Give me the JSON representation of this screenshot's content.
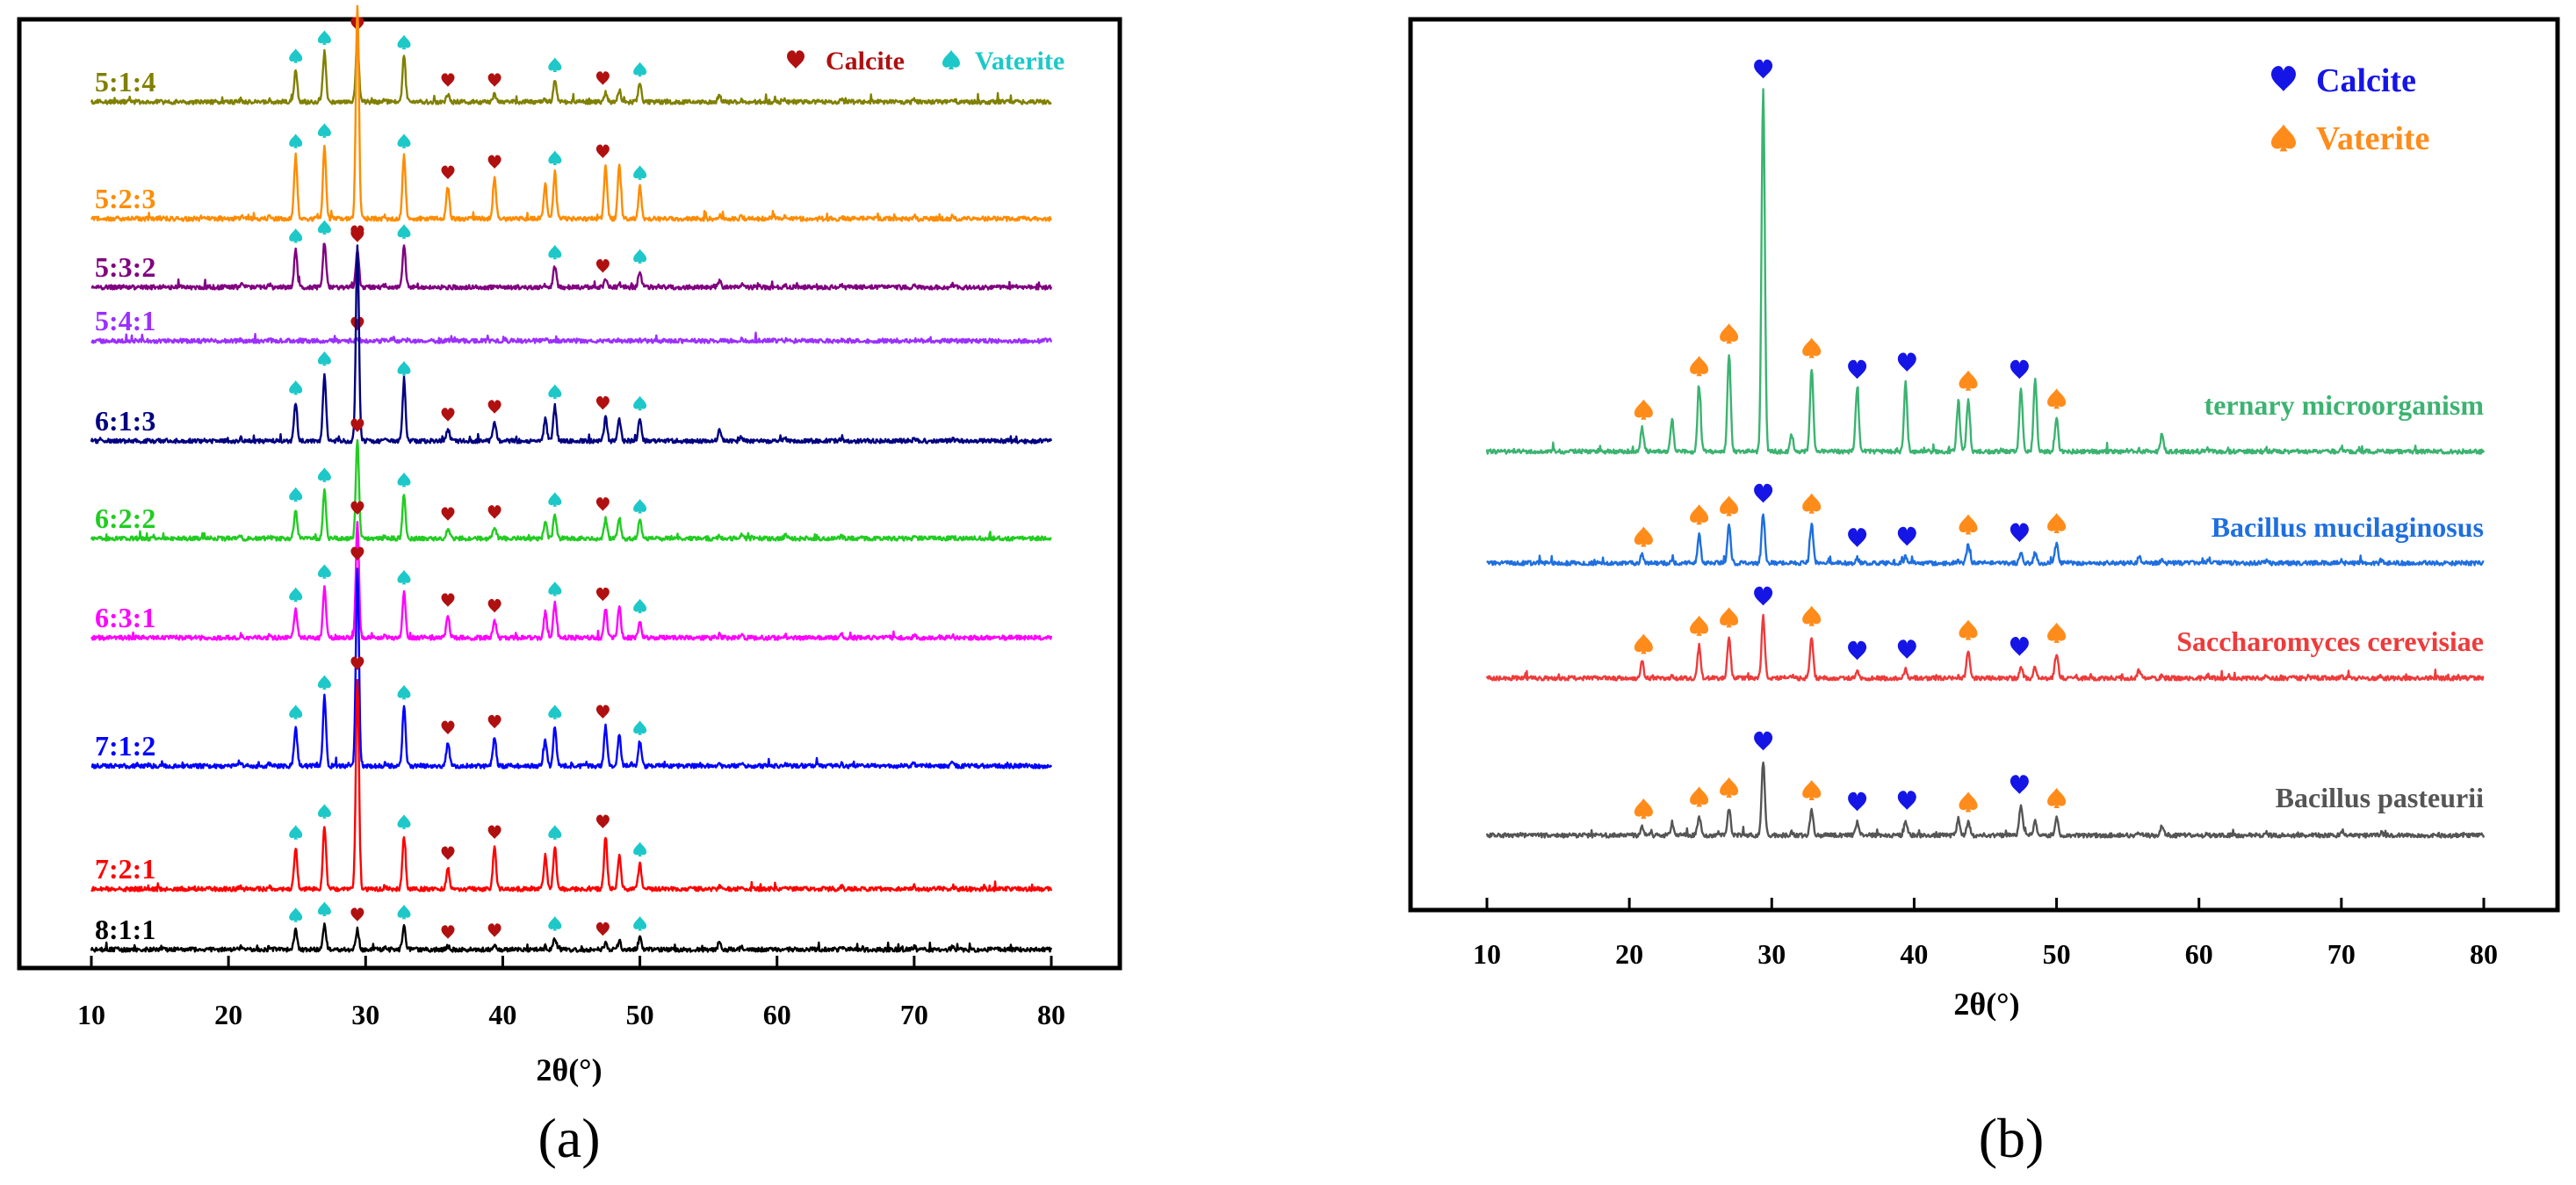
{
  "figure": {
    "panel_labels": [
      "(a)",
      "(b)"
    ]
  },
  "chart_data": [
    {
      "type": "line",
      "panel": "(a)",
      "xlabel": "2θ(°)",
      "ylabel": "",
      "xlim": [
        10,
        80
      ],
      "xticks": [
        10,
        20,
        30,
        40,
        50,
        60,
        70,
        80
      ],
      "grid": false,
      "legend": {
        "placement": "top-right",
        "entries": [
          {
            "name": "Calcite",
            "marker": "heart",
            "color": "#b01010"
          },
          {
            "name": "Vaterite",
            "marker": "spade",
            "color": "#1ec8c8"
          }
        ]
      },
      "series": [
        {
          "name": "5:1:4",
          "color": "#808000",
          "peaks": [
            [
              24.9,
              0.35
            ],
            [
              27.0,
              0.55
            ],
            [
              29.4,
              0.7
            ],
            [
              32.8,
              0.5
            ],
            [
              36.0,
              0.08
            ],
            [
              39.4,
              0.08
            ],
            [
              43.8,
              0.25
            ],
            [
              47.5,
              0.1
            ],
            [
              48.5,
              0.1
            ],
            [
              50.0,
              0.2
            ],
            [
              55.8,
              0.05
            ]
          ],
          "calcite_markers": [
            29.4,
            36.0,
            39.4,
            47.3
          ],
          "vaterite_markers": [
            24.9,
            27.0,
            32.8,
            43.8,
            50.0
          ]
        },
        {
          "name": "5:2:3",
          "color": "#ff8c00",
          "peaks": [
            [
              24.9,
              0.3
            ],
            [
              27.0,
              0.35
            ],
            [
              29.4,
              1.0
            ],
            [
              32.8,
              0.3
            ],
            [
              36.0,
              0.15
            ],
            [
              39.4,
              0.2
            ],
            [
              43.1,
              0.15
            ],
            [
              43.8,
              0.22
            ],
            [
              47.5,
              0.25
            ],
            [
              48.5,
              0.25
            ],
            [
              50.0,
              0.15
            ]
          ],
          "calcite_markers": [
            29.4,
            36.0,
            39.4,
            47.3
          ],
          "vaterite_markers": [
            24.9,
            27.0,
            32.8,
            43.8,
            50.0
          ]
        },
        {
          "name": "5:3:2",
          "color": "#800080",
          "peaks": [
            [
              24.9,
              0.45
            ],
            [
              27.0,
              0.55
            ],
            [
              29.4,
              0.45
            ],
            [
              32.8,
              0.5
            ],
            [
              43.8,
              0.25
            ],
            [
              47.5,
              0.08
            ],
            [
              50.0,
              0.2
            ],
            [
              55.8,
              0.05
            ]
          ],
          "calcite_markers": [
            29.4,
            47.3
          ],
          "vaterite_markers": [
            24.9,
            27.0,
            32.8,
            43.8,
            50.0
          ]
        },
        {
          "name": "5:4:1",
          "color": "#9b30ff",
          "peaks": [
            [
              29.4,
              0.1
            ],
            [
              32.0,
              0.08
            ]
          ],
          "calcite_markers": [
            29.4
          ],
          "vaterite_markers": []
        },
        {
          "name": "6:1:3",
          "color": "#000080",
          "peaks": [
            [
              24.9,
              0.2
            ],
            [
              27.0,
              0.35
            ],
            [
              29.4,
              1.0
            ],
            [
              32.8,
              0.3
            ],
            [
              36.0,
              0.06
            ],
            [
              39.4,
              0.1
            ],
            [
              43.1,
              0.1
            ],
            [
              43.8,
              0.18
            ],
            [
              47.5,
              0.12
            ],
            [
              48.5,
              0.1
            ],
            [
              50.0,
              0.12
            ],
            [
              55.8,
              0.05
            ]
          ],
          "calcite_markers": [
            29.4,
            36.0,
            39.4,
            47.3
          ],
          "vaterite_markers": [
            24.9,
            27.0,
            32.8,
            43.8,
            50.0
          ]
        },
        {
          "name": "6:2:2",
          "color": "#22cc22",
          "peaks": [
            [
              24.9,
              0.3
            ],
            [
              27.0,
              0.5
            ],
            [
              29.4,
              1.0
            ],
            [
              32.8,
              0.45
            ],
            [
              36.0,
              0.1
            ],
            [
              39.4,
              0.12
            ],
            [
              43.1,
              0.15
            ],
            [
              43.8,
              0.25
            ],
            [
              47.5,
              0.2
            ],
            [
              48.5,
              0.18
            ],
            [
              50.0,
              0.18
            ]
          ],
          "calcite_markers": [
            29.4,
            36.0,
            39.4,
            47.3
          ],
          "vaterite_markers": [
            24.9,
            27.0,
            32.8,
            43.8,
            50.0
          ]
        },
        {
          "name": "6:3:1",
          "color": "#ff00ff",
          "peaks": [
            [
              24.9,
              0.25
            ],
            [
              27.0,
              0.45
            ],
            [
              29.4,
              1.0
            ],
            [
              32.8,
              0.4
            ],
            [
              36.0,
              0.2
            ],
            [
              39.4,
              0.15
            ],
            [
              43.1,
              0.2
            ],
            [
              43.8,
              0.3
            ],
            [
              47.5,
              0.25
            ],
            [
              48.5,
              0.25
            ],
            [
              50.0,
              0.15
            ]
          ],
          "calcite_markers": [
            29.4,
            36.0,
            39.4,
            47.3
          ],
          "vaterite_markers": [
            24.9,
            27.0,
            32.8,
            43.8,
            50.0
          ]
        },
        {
          "name": "7:1:2",
          "color": "#0000ff",
          "peaks": [
            [
              24.9,
              0.2
            ],
            [
              27.0,
              0.35
            ],
            [
              29.4,
              1.0
            ],
            [
              32.8,
              0.3
            ],
            [
              36.0,
              0.12
            ],
            [
              39.4,
              0.15
            ],
            [
              43.1,
              0.12
            ],
            [
              43.8,
              0.2
            ],
            [
              47.5,
              0.2
            ],
            [
              48.5,
              0.15
            ],
            [
              50.0,
              0.12
            ]
          ],
          "calcite_markers": [
            29.4,
            36.0,
            39.4,
            47.3
          ],
          "vaterite_markers": [
            24.9,
            27.0,
            32.8,
            43.8,
            50.0
          ]
        },
        {
          "name": "7:2:1",
          "color": "#ff0000",
          "peaks": [
            [
              24.9,
              0.2
            ],
            [
              27.0,
              0.3
            ],
            [
              29.4,
              1.0
            ],
            [
              32.8,
              0.25
            ],
            [
              36.0,
              0.1
            ],
            [
              39.4,
              0.2
            ],
            [
              43.1,
              0.15
            ],
            [
              43.8,
              0.2
            ],
            [
              47.5,
              0.25
            ],
            [
              48.5,
              0.15
            ],
            [
              50.0,
              0.12
            ]
          ],
          "calcite_markers": [
            29.4,
            36.0,
            39.4,
            47.3
          ],
          "vaterite_markers": [
            24.9,
            27.0,
            32.8,
            43.8,
            50.0
          ]
        },
        {
          "name": "8:1:1",
          "color": "#000000",
          "peaks": [
            [
              24.9,
              0.35
            ],
            [
              27.0,
              0.45
            ],
            [
              29.4,
              0.35
            ],
            [
              32.8,
              0.4
            ],
            [
              36.0,
              0.05
            ],
            [
              39.4,
              0.08
            ],
            [
              43.8,
              0.2
            ],
            [
              47.5,
              0.1
            ],
            [
              48.5,
              0.1
            ],
            [
              50.0,
              0.2
            ],
            [
              55.8,
              0.08
            ]
          ],
          "calcite_markers": [
            29.4,
            36.0,
            39.4,
            47.3
          ],
          "vaterite_markers": [
            24.9,
            27.0,
            32.8,
            43.8,
            50.0
          ]
        }
      ]
    },
    {
      "type": "line",
      "panel": "(b)",
      "xlabel": "2θ(°)",
      "ylabel": "",
      "xlim": [
        10,
        80
      ],
      "xticks": [
        10,
        20,
        30,
        40,
        50,
        60,
        70,
        80
      ],
      "grid": false,
      "legend": {
        "placement": "top-right",
        "entries": [
          {
            "name": "Calcite",
            "marker": "heart",
            "color": "#1515e6"
          },
          {
            "name": "Vaterite",
            "marker": "spade",
            "color": "#ff8c1a"
          }
        ]
      },
      "series": [
        {
          "name": "ternary microorganism",
          "color": "#3cb371",
          "peaks": [
            [
              20.9,
              0.06
            ],
            [
              23.0,
              0.08
            ],
            [
              24.9,
              0.18
            ],
            [
              27.0,
              0.27
            ],
            [
              29.4,
              1.0
            ],
            [
              31.4,
              0.04
            ],
            [
              32.8,
              0.23
            ],
            [
              36.0,
              0.17
            ],
            [
              39.4,
              0.19
            ],
            [
              43.1,
              0.13
            ],
            [
              43.8,
              0.14
            ],
            [
              47.5,
              0.17
            ],
            [
              48.5,
              0.19
            ],
            [
              50.0,
              0.09
            ],
            [
              57.4,
              0.04
            ]
          ],
          "calcite_markers": [
            29.4,
            36.0,
            39.5,
            47.4
          ],
          "vaterite_markers": [
            21.0,
            24.9,
            27.0,
            32.8,
            43.8,
            50.0
          ]
        },
        {
          "name": "Bacillus mucilaginosus",
          "color": "#1f6fdf",
          "peaks": [
            [
              20.9,
              0.05
            ],
            [
              24.9,
              0.23
            ],
            [
              27.0,
              0.3
            ],
            [
              29.4,
              0.4
            ],
            [
              32.8,
              0.32
            ],
            [
              36.0,
              0.04
            ],
            [
              39.4,
              0.05
            ],
            [
              43.8,
              0.15
            ],
            [
              47.5,
              0.08
            ],
            [
              48.5,
              0.06
            ],
            [
              50.0,
              0.16
            ],
            [
              55.8,
              0.03
            ]
          ],
          "calcite_markers": [
            29.4,
            36.0,
            39.5,
            47.4
          ],
          "vaterite_markers": [
            21.0,
            24.9,
            27.0,
            32.8,
            43.8,
            50.0
          ]
        },
        {
          "name": "Saccharomyces cerevisiae",
          "color": "#ee3b3b",
          "peaks": [
            [
              20.9,
              0.1
            ],
            [
              24.9,
              0.23
            ],
            [
              27.0,
              0.29
            ],
            [
              29.4,
              0.44
            ],
            [
              32.8,
              0.3
            ],
            [
              36.0,
              0.05
            ],
            [
              39.4,
              0.06
            ],
            [
              43.8,
              0.2
            ],
            [
              47.5,
              0.08
            ],
            [
              48.5,
              0.06
            ],
            [
              50.0,
              0.18
            ],
            [
              55.8,
              0.04
            ]
          ],
          "calcite_markers": [
            29.4,
            36.0,
            39.5,
            47.4
          ],
          "vaterite_markers": [
            21.0,
            24.9,
            27.0,
            32.8,
            43.8,
            50.0
          ]
        },
        {
          "name": "Bacillus pasteurii",
          "color": "#555555",
          "peaks": [
            [
              20.9,
              0.05
            ],
            [
              23.0,
              0.07
            ],
            [
              24.9,
              0.14
            ],
            [
              27.0,
              0.21
            ],
            [
              29.4,
              0.56
            ],
            [
              32.8,
              0.19
            ],
            [
              36.0,
              0.1
            ],
            [
              39.4,
              0.11
            ],
            [
              43.1,
              0.11
            ],
            [
              43.8,
              0.1
            ],
            [
              47.5,
              0.23
            ],
            [
              48.5,
              0.09
            ],
            [
              50.0,
              0.13
            ],
            [
              57.4,
              0.06
            ]
          ],
          "calcite_markers": [
            29.4,
            36.0,
            39.5,
            47.4
          ],
          "vaterite_markers": [
            21.0,
            24.9,
            27.0,
            32.8,
            43.8,
            50.0
          ]
        }
      ]
    }
  ]
}
